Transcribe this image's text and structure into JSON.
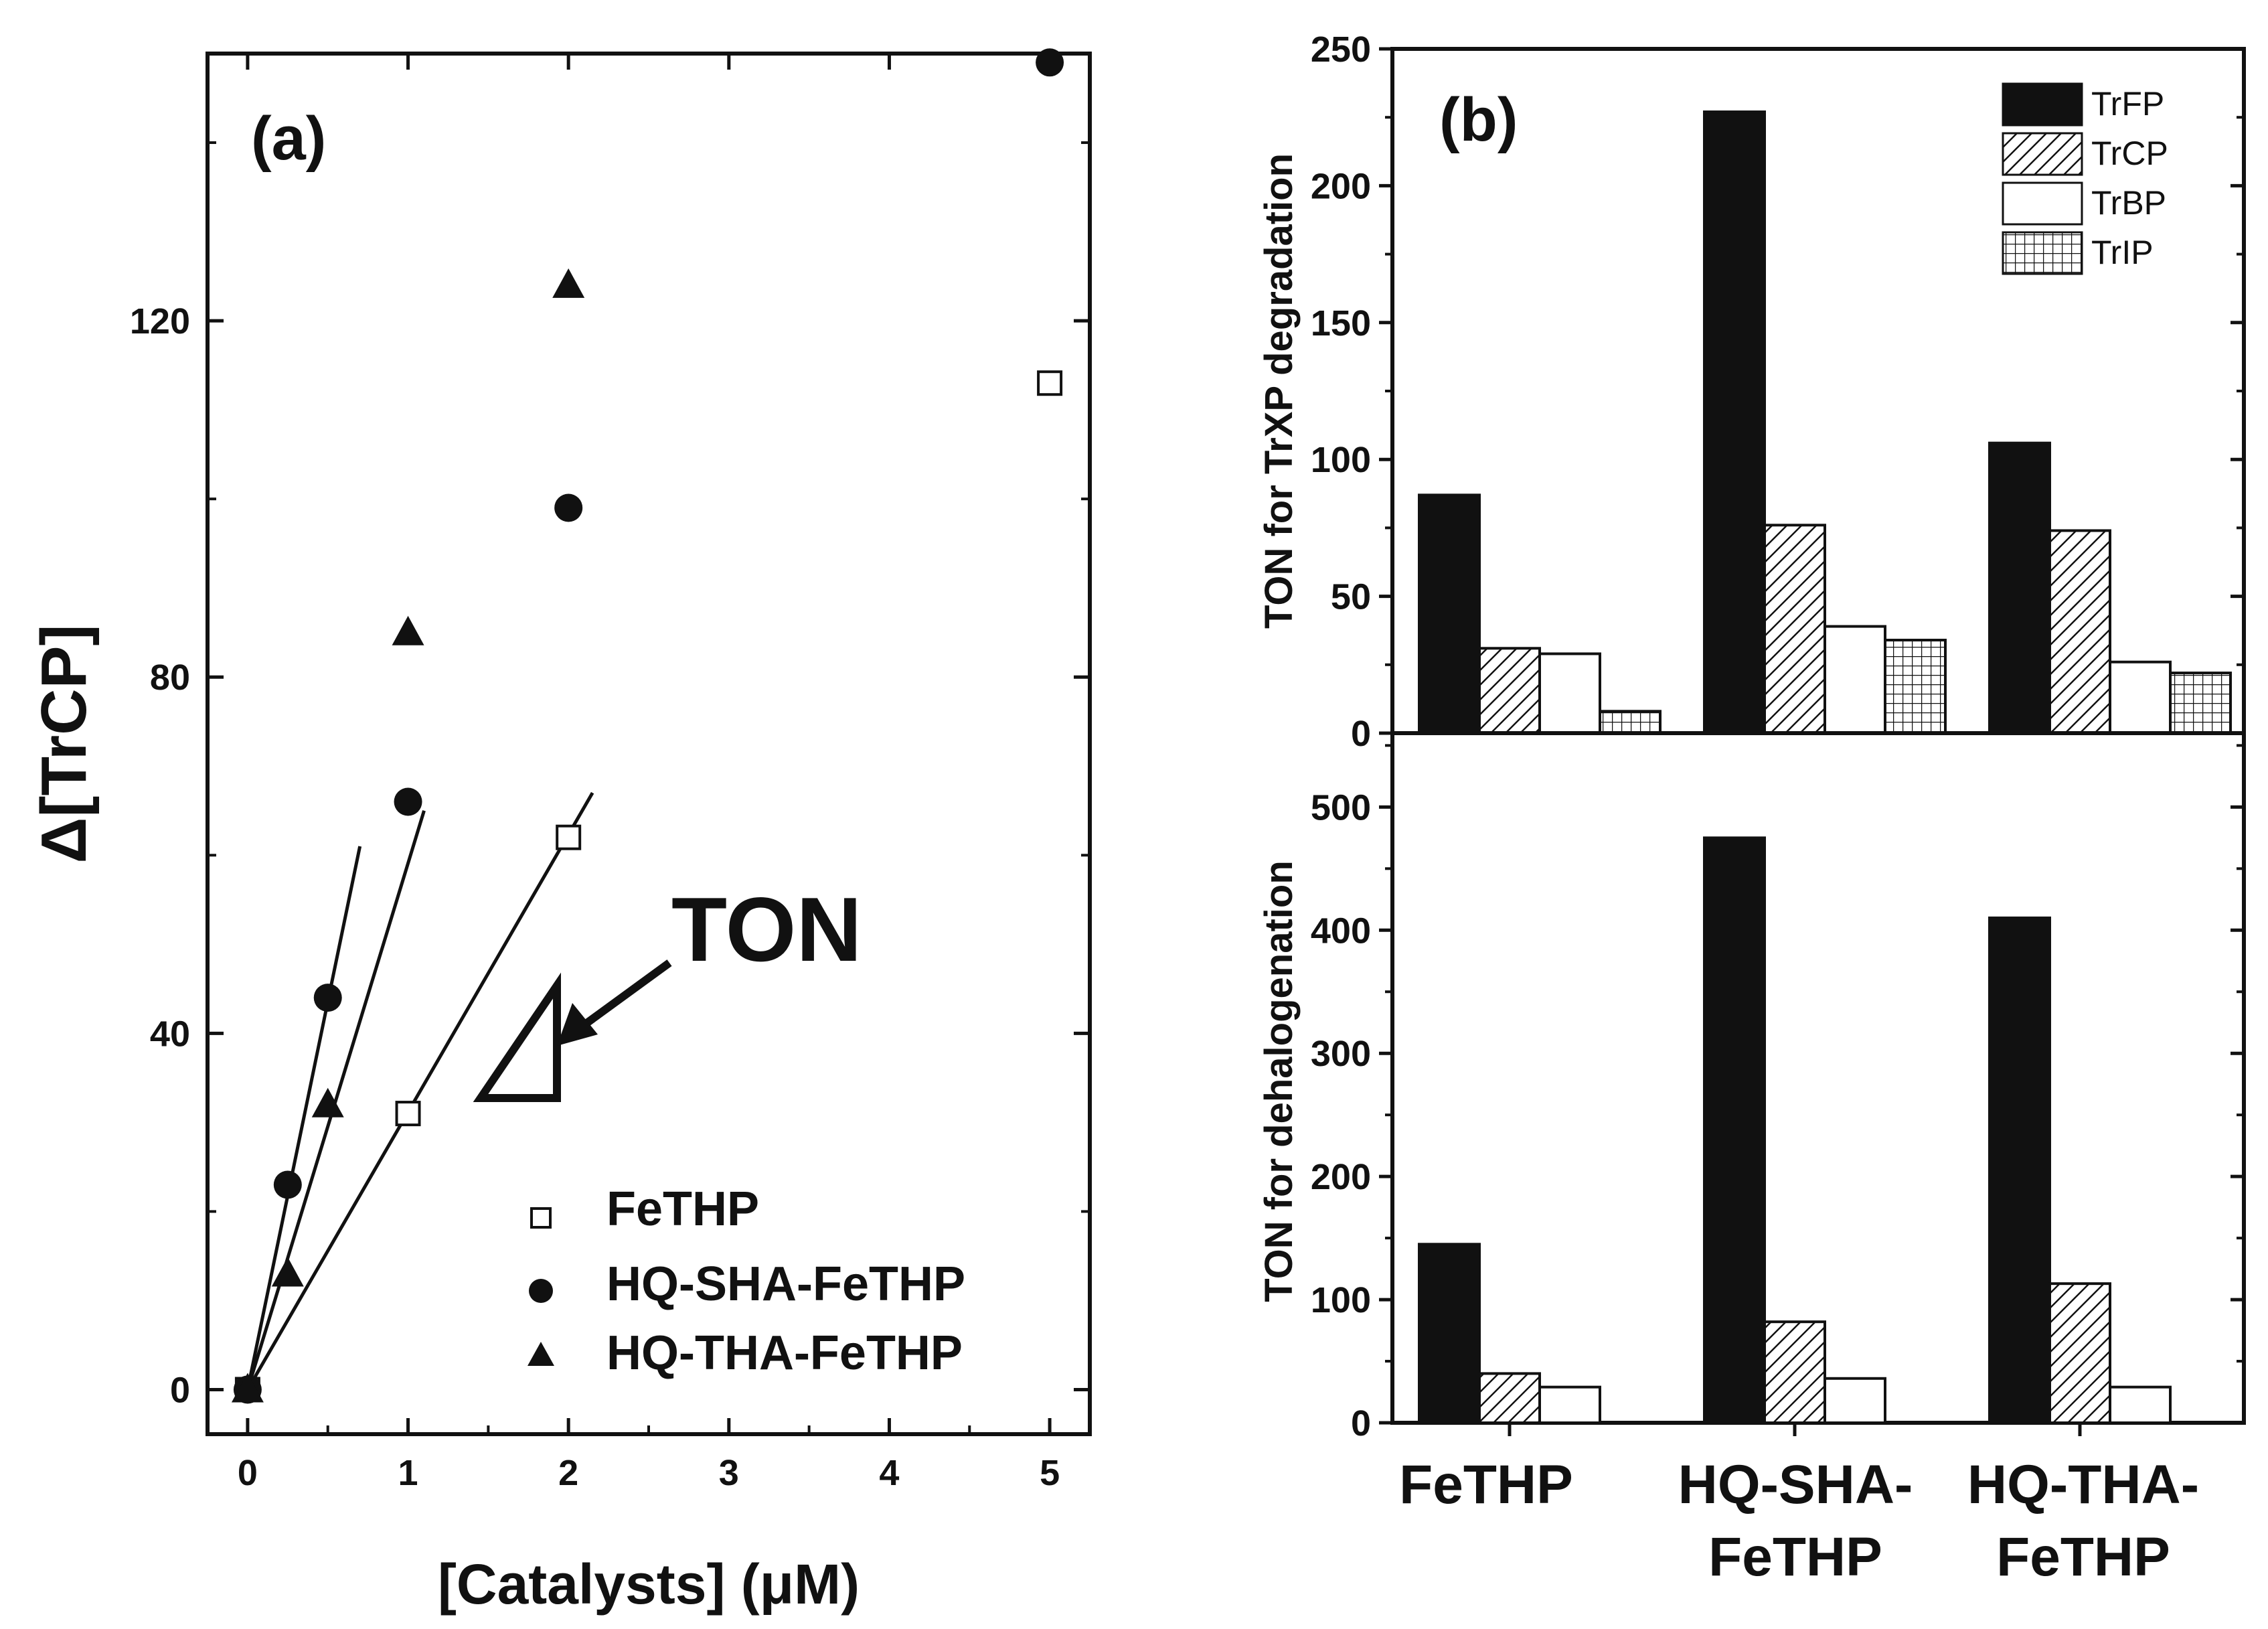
{
  "chart_data": [
    {
      "type": "scatter",
      "panel_label": "(a)",
      "xlabel": "[Catalysts] (μM)",
      "ylabel": "Δ[TrCP]",
      "xlim": [
        -0.25,
        5.25
      ],
      "ylim": [
        -5,
        150
      ],
      "xticks": [
        0,
        1,
        2,
        3,
        4,
        5
      ],
      "yticks": [
        0,
        40,
        80,
        120
      ],
      "series": [
        {
          "name": "FeTHP",
          "marker": "open-square",
          "x": [
            0,
            1,
            2,
            5
          ],
          "y": [
            0,
            31,
            62,
            113
          ]
        },
        {
          "name": "HQ-SHA-FeTHP",
          "marker": "filled-circle",
          "x": [
            0,
            0.25,
            0.5,
            1,
            2,
            5
          ],
          "y": [
            0,
            23,
            44,
            66,
            99,
            149
          ]
        },
        {
          "name": "HQ-THA-FeTHP",
          "marker": "filled-triangle",
          "x": [
            0,
            0.25,
            0.5,
            1,
            2
          ],
          "y": [
            0,
            13,
            32,
            85,
            124
          ]
        }
      ],
      "fit_lines": [
        {
          "series": "HQ-SHA-FeTHP",
          "x": [
            0,
            0.7
          ],
          "y": [
            0,
            61
          ]
        },
        {
          "series": "HQ-THA-FeTHP",
          "x": [
            0,
            1.1
          ],
          "y": [
            0,
            65
          ]
        },
        {
          "series": "FeTHP",
          "x": [
            0,
            2.15
          ],
          "y": [
            0,
            67
          ]
        }
      ],
      "annotation": "TON"
    },
    {
      "type": "bar",
      "panel_label": "(b)",
      "ylabel": "TON for TrXP degradation",
      "ylim": [
        0,
        250
      ],
      "yticks": [
        0,
        50,
        100,
        150,
        200,
        250
      ],
      "categories": [
        "FeTHP",
        "HQ-SHA-FeTHP",
        "HQ-THA-FeTHP"
      ],
      "series": [
        {
          "name": "TrFP",
          "pattern": "solid-black",
          "values": [
            87,
            227,
            106
          ]
        },
        {
          "name": "TrCP",
          "pattern": "diagonal-hatch",
          "values": [
            31,
            76,
            74
          ]
        },
        {
          "name": "TrBP",
          "pattern": "open",
          "values": [
            29,
            39,
            26
          ]
        },
        {
          "name": "TrIP",
          "pattern": "grid",
          "values": [
            8,
            34,
            22
          ]
        }
      ]
    },
    {
      "type": "bar",
      "ylabel": "TON for dehalogenation",
      "ylim": [
        0,
        560
      ],
      "yticks": [
        0,
        100,
        200,
        300,
        400,
        500
      ],
      "categories": [
        "FeTHP",
        "HQ-SHA-FeTHP",
        "HQ-THA-FeTHP"
      ],
      "category_labels": [
        [
          "FeTHP"
        ],
        [
          "HQ-SHA-",
          "FeTHP"
        ],
        [
          "HQ-THA-",
          "FeTHP"
        ]
      ],
      "series": [
        {
          "name": "TrFP",
          "pattern": "solid-black",
          "values": [
            145,
            475,
            410
          ]
        },
        {
          "name": "TrCP",
          "pattern": "diagonal-hatch",
          "values": [
            40,
            82,
            113
          ]
        },
        {
          "name": "TrBP",
          "pattern": "open",
          "values": [
            29,
            36,
            29
          ]
        }
      ]
    }
  ]
}
